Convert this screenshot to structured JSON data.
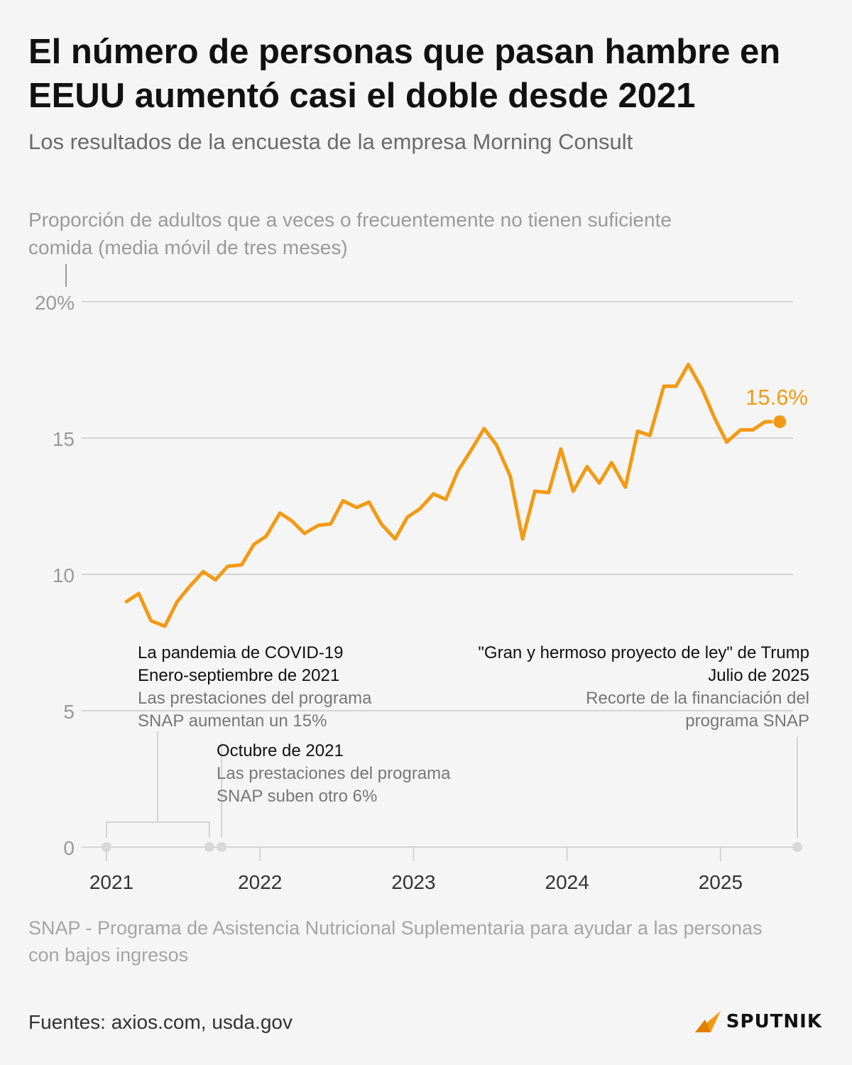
{
  "title": "El número de personas que pasan hambre en EEUU aumentó casi el doble desde 2021",
  "subtitle": "Los resultados de la encuesta de la empresa Morning Consult",
  "axis_title": "Proporción de adultos que a veces o frecuentemente no tienen suficiente comida (media móvil de tres meses)",
  "annotations": {
    "covid_title": "La pandemia de COVID-19",
    "covid_date": "Enero-septiembre de 2021",
    "covid_text": "Las prestaciones del programa SNAP aumentan un 15%",
    "october_date": "Octubre de 2021",
    "october_text": "Las prestaciones del programa SNAP suben otro 6%",
    "trump_title": "\"Gran y hermoso proyecto de ley\" de Trump",
    "trump_date": "Julio de 2025",
    "trump_text": "Recorte de la financiación del programa SNAP"
  },
  "note": "SNAP - Programa de Asistencia Nutricional Suplementaria para ayudar a las personas con bajos ingresos",
  "source": "Fuentes: axios.com, usda.gov",
  "logo_text": "SPUTNIK",
  "colors": {
    "line": "#f39a14",
    "grid": "#d4d4d4",
    "tick": "#9a9a9a",
    "marker": "#d8d8d8"
  },
  "chart_data": {
    "type": "line",
    "title": "Proporción de adultos que a veces o frecuentemente no tienen suficiente comida (media móvil de tres meses)",
    "xlabel": "",
    "ylabel": "",
    "xlim": [
      2021.0,
      2025.5
    ],
    "ylim": [
      0,
      20
    ],
    "y_ticks": [
      0,
      5,
      10,
      15,
      20
    ],
    "y_tick_labels": [
      "0",
      "5",
      "10",
      "15",
      "20%"
    ],
    "x_ticks": [
      2021,
      2022,
      2023,
      2024,
      2025
    ],
    "x_tick_labels": [
      "2021",
      "2022",
      "2023",
      "2024",
      "2025"
    ],
    "grid": true,
    "series": [
      {
        "name": "Proporción de adultos",
        "x": [
          2021.13,
          2021.21,
          2021.29,
          2021.38,
          2021.46,
          2021.54,
          2021.63,
          2021.71,
          2021.79,
          2021.88,
          2021.96,
          2022.04,
          2022.13,
          2022.21,
          2022.29,
          2022.38,
          2022.46,
          2022.54,
          2022.63,
          2022.71,
          2022.79,
          2022.88,
          2022.96,
          2023.04,
          2023.13,
          2023.21,
          2023.29,
          2023.38,
          2023.46,
          2023.54,
          2023.63,
          2023.71,
          2023.79,
          2023.88,
          2023.96,
          2024.04,
          2024.13,
          2024.21,
          2024.29,
          2024.38,
          2024.46,
          2024.54,
          2024.63,
          2024.71,
          2024.79,
          2024.88,
          2024.96,
          2025.04,
          2025.13,
          2025.21,
          2025.29,
          2025.33
        ],
        "values": [
          9.0,
          9.3,
          8.3,
          8.1,
          9.0,
          9.55,
          10.1,
          9.8,
          10.3,
          10.35,
          11.1,
          11.4,
          12.25,
          11.95,
          11.5,
          11.8,
          11.85,
          12.7,
          12.45,
          12.65,
          11.85,
          11.3,
          12.1,
          12.4,
          12.95,
          12.75,
          13.8,
          14.6,
          15.35,
          14.75,
          13.6,
          11.3,
          13.05,
          13.0,
          14.6,
          13.05,
          13.95,
          13.35,
          14.1,
          13.2,
          15.25,
          15.1,
          16.9,
          16.9,
          17.7,
          16.8,
          15.75,
          14.85,
          15.3,
          15.3,
          15.6,
          15.6
        ]
      }
    ],
    "end_label": "15.6%",
    "markers": [
      2021.0,
      2021.67,
      2021.75,
      2025.5
    ]
  }
}
